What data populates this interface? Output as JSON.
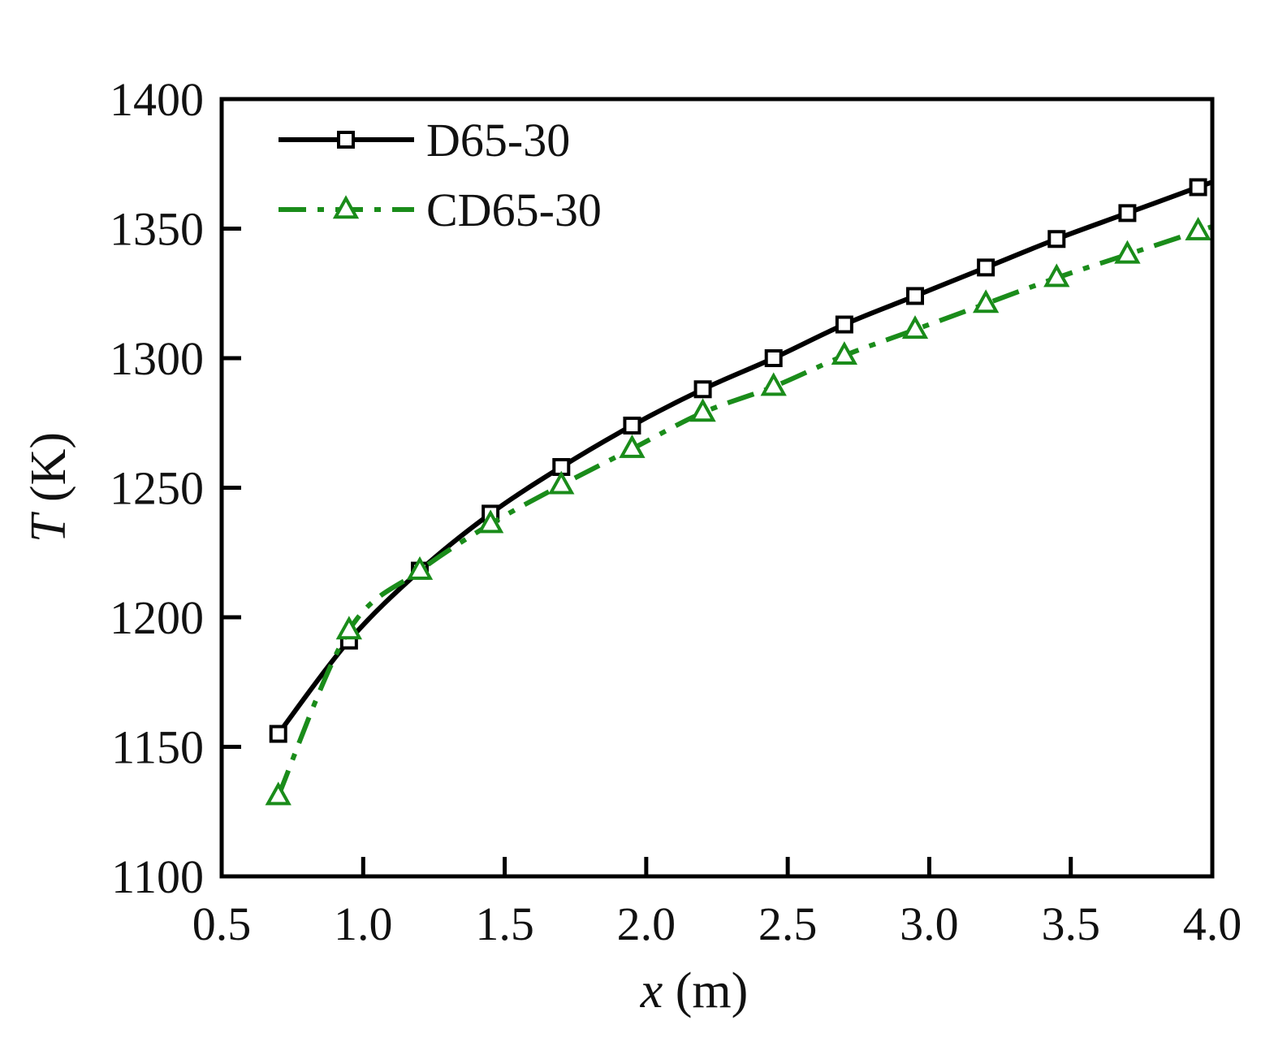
{
  "chart_data": {
    "type": "line",
    "title": "",
    "xlabel": {
      "var": "x",
      "unit": " (m)"
    },
    "ylabel": {
      "var": "T",
      "unit": " (K)"
    },
    "xlim": [
      0.5,
      4.0
    ],
    "ylim": [
      1100,
      1400
    ],
    "xticks": [
      "0.5",
      "1.0",
      "1.5",
      "2.0",
      "2.5",
      "3.0",
      "3.5",
      "4.0"
    ],
    "yticks": [
      "1100",
      "1150",
      "1200",
      "1250",
      "1300",
      "1350",
      "1400"
    ],
    "grid": false,
    "legend_position": "top-left",
    "series": [
      {
        "name": "D65-30",
        "color": "#000000",
        "marker": "square",
        "linestyle": "solid",
        "x": [
          0.7,
          0.95,
          1.2,
          1.45,
          1.7,
          1.95,
          2.2,
          2.45,
          2.7,
          2.95,
          3.2,
          3.45,
          3.7,
          3.95
        ],
        "y": [
          1155,
          1191,
          1218,
          1240,
          1258,
          1274,
          1288,
          1300,
          1313,
          1324,
          1335,
          1346,
          1356,
          1366
        ]
      },
      {
        "name": "CD65-30",
        "color": "#1a8c1a",
        "marker": "triangle",
        "linestyle": "dashdot",
        "x": [
          0.7,
          0.95,
          1.2,
          1.45,
          1.7,
          1.95,
          2.2,
          2.45,
          2.7,
          2.95,
          3.2,
          3.45,
          3.7,
          3.95
        ],
        "y": [
          1131,
          1195,
          1218,
          1236,
          1251,
          1265,
          1279,
          1289,
          1301,
          1311,
          1321,
          1331,
          1340,
          1349
        ]
      }
    ]
  }
}
